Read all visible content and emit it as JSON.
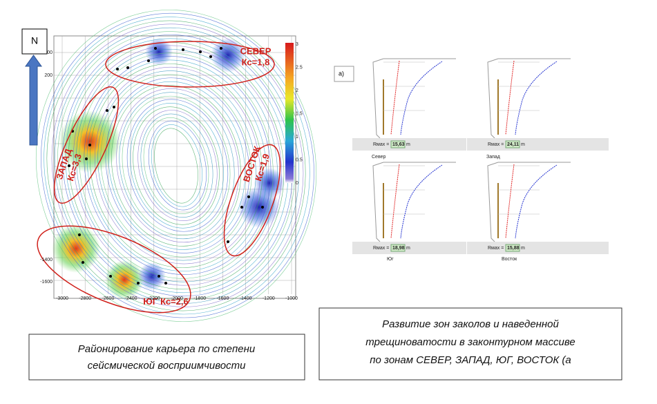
{
  "compass": "N",
  "map": {
    "zones": [
      {
        "label": "СЕВЕР",
        "coef": "Кс=1,8"
      },
      {
        "label": "ЗАПАД",
        "coef": "Кс=3,3"
      },
      {
        "label": "ВОСТОК",
        "coef": "Кс=1,9"
      },
      {
        "label": "ЮГ",
        "coef": "Кс=2,6"
      }
    ],
    "y_ticks": [
      "400",
      "200",
      "-1400",
      "-1600"
    ],
    "x_ticks": [
      "-3000",
      "-2800",
      "-2600",
      "-2400",
      "-2200",
      "-2000",
      "-1800",
      "-1600",
      "-1400",
      "-1200",
      "-1000"
    ],
    "colorbar_ticks": [
      "3",
      "2.5",
      "2",
      "1.5",
      "1",
      "0.5",
      "0"
    ]
  },
  "left_caption": {
    "lines": [
      "Районирование  карьера по степени",
      "сейсмической  восприимчивости"
    ]
  },
  "panel": {
    "label": "а)",
    "charts": [
      {
        "name": "Север",
        "rmax_label": "Rмах =",
        "rmax": "15,63",
        "unit": "m"
      },
      {
        "name": "Запад",
        "rmax_label": "Rмах =",
        "rmax": "24,11",
        "unit": "m"
      },
      {
        "name": "Юг",
        "rmax_label": "Rмах =",
        "rmax": "18,98",
        "unit": "m"
      },
      {
        "name": "Восток",
        "rmax_label": "Rмах =",
        "rmax": "15,88",
        "unit": "m"
      }
    ]
  },
  "right_caption": {
    "lines": [
      "Развитие зон заколов и  наведенной",
      "трещиноватости  в законтурном массиве",
      "по зонам СЕВЕР, ЗАПАД, ЮГ,  ВОСТОК (а"
    ]
  }
}
